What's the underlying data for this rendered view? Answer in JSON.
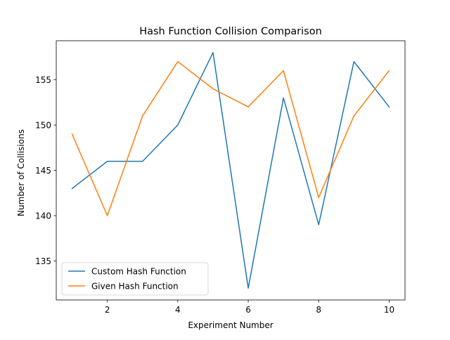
{
  "chart_data": {
    "type": "line",
    "title": "Hash Function Collision Comparison",
    "xlabel": "Experiment Number",
    "ylabel": "Number of Collisions",
    "x": [
      1,
      2,
      3,
      4,
      5,
      6,
      7,
      8,
      9,
      10
    ],
    "xlim": [
      0.55,
      10.45
    ],
    "ylim": [
      130.7,
      159.3
    ],
    "xticks": [
      2,
      4,
      6,
      8,
      10
    ],
    "yticks": [
      135,
      140,
      145,
      150,
      155
    ],
    "xtick_labels": [
      "2",
      "4",
      "6",
      "8",
      "10"
    ],
    "ytick_labels": [
      "135",
      "140",
      "145",
      "150",
      "155"
    ],
    "grid": false,
    "legend_position": "lower-left",
    "series": [
      {
        "name": "Custom Hash Function",
        "color": "#1f77b4",
        "values": [
          143,
          146,
          146,
          150,
          158,
          132,
          153,
          139,
          157,
          152
        ]
      },
      {
        "name": "Given Hash Function",
        "color": "#ff7f0e",
        "values": [
          149,
          140,
          151,
          157,
          154,
          152,
          156,
          142,
          151,
          156
        ]
      }
    ]
  }
}
